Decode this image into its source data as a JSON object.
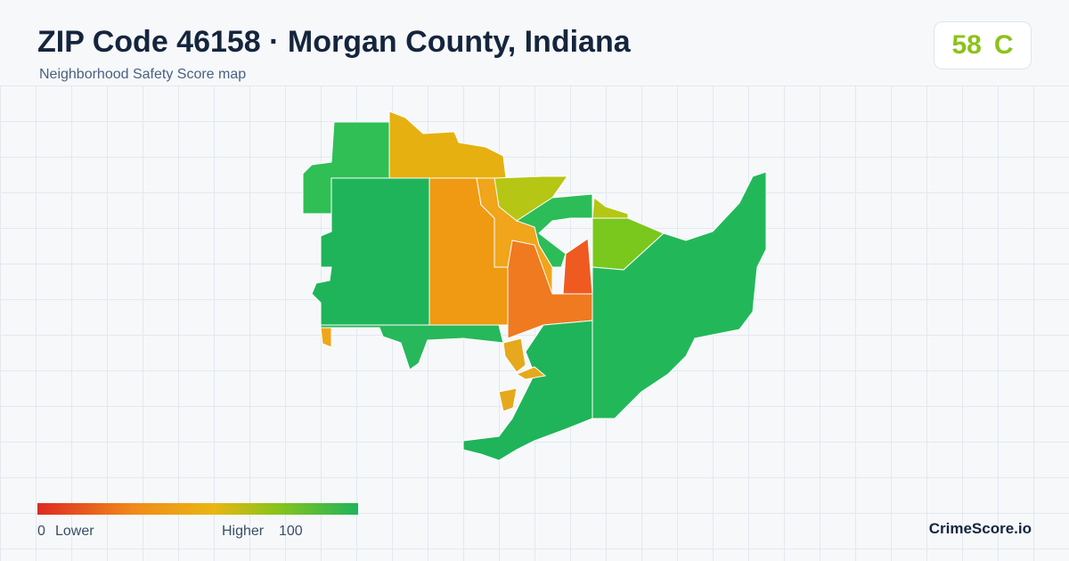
{
  "header": {
    "title": "ZIP Code 46158 · Morgan County, Indiana",
    "subtitle": "Neighborhood Safety Score map"
  },
  "score": {
    "value": 58,
    "grade": "C"
  },
  "legend": {
    "min": 0,
    "min_label": "Lower",
    "max_label": "Higher",
    "max": 100
  },
  "brand": "CrimeScore.io"
}
